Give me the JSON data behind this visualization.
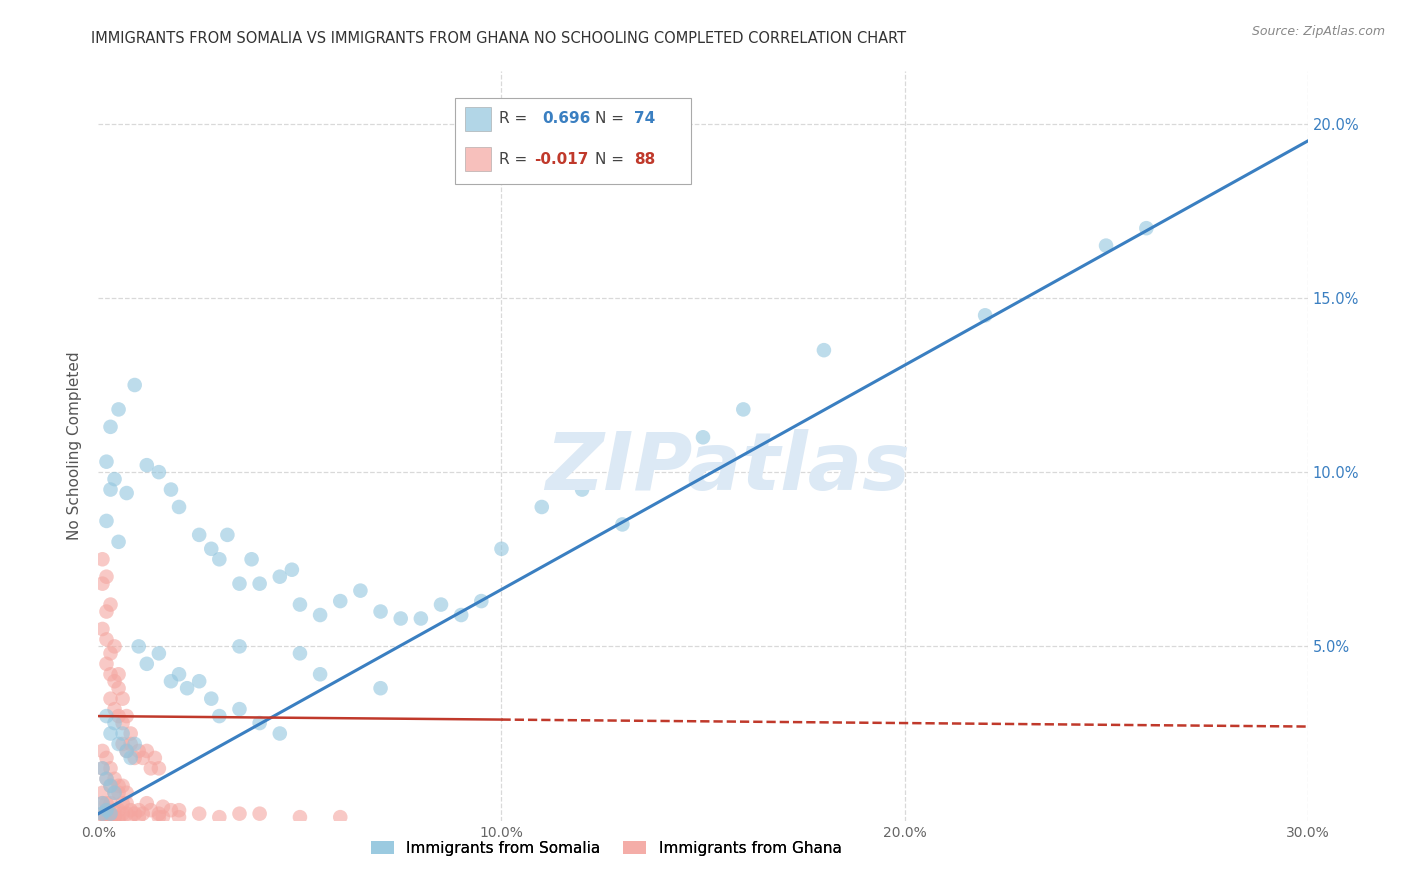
{
  "title": "IMMIGRANTS FROM SOMALIA VS IMMIGRANTS FROM GHANA NO SCHOOLING COMPLETED CORRELATION CHART",
  "source": "Source: ZipAtlas.com",
  "ylabel": "No Schooling Completed",
  "xlim": [
    0.0,
    0.3
  ],
  "ylim": [
    0.0,
    0.215
  ],
  "xtick_vals": [
    0.0,
    0.1,
    0.2,
    0.3
  ],
  "ytick_vals_right": [
    0.05,
    0.1,
    0.15,
    0.2
  ],
  "somalia_color": "#92c5de",
  "ghana_color": "#f4a6a0",
  "somalia_line_color": "#3a7fc1",
  "ghana_line_color": "#c0392b",
  "watermark": "ZIPatlas",
  "watermark_color": "#dce9f5",
  "background_color": "#ffffff",
  "grid_color": "#d9d9d9",
  "legend_R_color_somalia": "#3a7fc1",
  "legend_R_color_ghana": "#c0392b",
  "legend_somalia_label": "Immigrants from Somalia",
  "legend_ghana_label": "Immigrants from Ghana",
  "somalia_line": [
    [
      0.0,
      0.002
    ],
    [
      0.3,
      0.195
    ]
  ],
  "ghana_line_solid": [
    [
      0.0,
      0.03
    ],
    [
      0.1,
      0.029
    ]
  ],
  "ghana_line_dashed": [
    [
      0.1,
      0.029
    ],
    [
      0.3,
      0.027
    ]
  ],
  "somalia_pts": [
    [
      0.003,
      0.113
    ],
    [
      0.005,
      0.118
    ],
    [
      0.009,
      0.125
    ],
    [
      0.012,
      0.102
    ],
    [
      0.002,
      0.103
    ],
    [
      0.004,
      0.098
    ],
    [
      0.003,
      0.095
    ],
    [
      0.007,
      0.094
    ],
    [
      0.002,
      0.086
    ],
    [
      0.005,
      0.08
    ],
    [
      0.015,
      0.1
    ],
    [
      0.018,
      0.095
    ],
    [
      0.02,
      0.09
    ],
    [
      0.025,
      0.082
    ],
    [
      0.028,
      0.078
    ],
    [
      0.03,
      0.075
    ],
    [
      0.032,
      0.082
    ],
    [
      0.035,
      0.068
    ],
    [
      0.038,
      0.075
    ],
    [
      0.04,
      0.068
    ],
    [
      0.045,
      0.07
    ],
    [
      0.048,
      0.072
    ],
    [
      0.05,
      0.062
    ],
    [
      0.055,
      0.059
    ],
    [
      0.06,
      0.063
    ],
    [
      0.065,
      0.066
    ],
    [
      0.07,
      0.06
    ],
    [
      0.075,
      0.058
    ],
    [
      0.08,
      0.058
    ],
    [
      0.085,
      0.062
    ],
    [
      0.09,
      0.059
    ],
    [
      0.095,
      0.063
    ],
    [
      0.01,
      0.05
    ],
    [
      0.012,
      0.045
    ],
    [
      0.015,
      0.048
    ],
    [
      0.018,
      0.04
    ],
    [
      0.02,
      0.042
    ],
    [
      0.022,
      0.038
    ],
    [
      0.025,
      0.04
    ],
    [
      0.028,
      0.035
    ],
    [
      0.03,
      0.03
    ],
    [
      0.035,
      0.032
    ],
    [
      0.04,
      0.028
    ],
    [
      0.045,
      0.025
    ],
    [
      0.002,
      0.03
    ],
    [
      0.003,
      0.025
    ],
    [
      0.004,
      0.028
    ],
    [
      0.005,
      0.022
    ],
    [
      0.006,
      0.025
    ],
    [
      0.007,
      0.02
    ],
    [
      0.008,
      0.018
    ],
    [
      0.009,
      0.022
    ],
    [
      0.001,
      0.015
    ],
    [
      0.002,
      0.012
    ],
    [
      0.003,
      0.01
    ],
    [
      0.004,
      0.008
    ],
    [
      0.001,
      0.005
    ],
    [
      0.002,
      0.003
    ],
    [
      0.003,
      0.002
    ],
    [
      0.001,
      0.002
    ],
    [
      0.035,
      0.05
    ],
    [
      0.05,
      0.048
    ],
    [
      0.11,
      0.09
    ],
    [
      0.13,
      0.085
    ],
    [
      0.15,
      0.11
    ],
    [
      0.16,
      0.118
    ],
    [
      0.18,
      0.135
    ],
    [
      0.22,
      0.145
    ],
    [
      0.25,
      0.165
    ],
    [
      0.26,
      0.17
    ],
    [
      0.07,
      0.038
    ],
    [
      0.055,
      0.042
    ],
    [
      0.1,
      0.078
    ],
    [
      0.12,
      0.095
    ]
  ],
  "ghana_pts": [
    [
      0.001,
      0.075
    ],
    [
      0.002,
      0.07
    ],
    [
      0.001,
      0.068
    ],
    [
      0.002,
      0.06
    ],
    [
      0.003,
      0.062
    ],
    [
      0.001,
      0.055
    ],
    [
      0.002,
      0.052
    ],
    [
      0.003,
      0.048
    ],
    [
      0.004,
      0.05
    ],
    [
      0.002,
      0.045
    ],
    [
      0.003,
      0.042
    ],
    [
      0.004,
      0.04
    ],
    [
      0.005,
      0.038
    ],
    [
      0.005,
      0.042
    ],
    [
      0.006,
      0.035
    ],
    [
      0.003,
      0.035
    ],
    [
      0.004,
      0.032
    ],
    [
      0.005,
      0.03
    ],
    [
      0.006,
      0.028
    ],
    [
      0.007,
      0.03
    ],
    [
      0.008,
      0.025
    ],
    [
      0.006,
      0.022
    ],
    [
      0.007,
      0.02
    ],
    [
      0.008,
      0.022
    ],
    [
      0.009,
      0.018
    ],
    [
      0.01,
      0.02
    ],
    [
      0.011,
      0.018
    ],
    [
      0.012,
      0.02
    ],
    [
      0.013,
      0.015
    ],
    [
      0.014,
      0.018
    ],
    [
      0.015,
      0.015
    ],
    [
      0.001,
      0.02
    ],
    [
      0.001,
      0.015
    ],
    [
      0.002,
      0.018
    ],
    [
      0.002,
      0.012
    ],
    [
      0.003,
      0.015
    ],
    [
      0.003,
      0.01
    ],
    [
      0.004,
      0.012
    ],
    [
      0.004,
      0.008
    ],
    [
      0.005,
      0.01
    ],
    [
      0.005,
      0.008
    ],
    [
      0.006,
      0.01
    ],
    [
      0.006,
      0.005
    ],
    [
      0.007,
      0.008
    ],
    [
      0.007,
      0.005
    ],
    [
      0.001,
      0.008
    ],
    [
      0.001,
      0.005
    ],
    [
      0.002,
      0.005
    ],
    [
      0.002,
      0.003
    ],
    [
      0.003,
      0.005
    ],
    [
      0.003,
      0.002
    ],
    [
      0.004,
      0.003
    ],
    [
      0.004,
      0.001
    ],
    [
      0.005,
      0.003
    ],
    [
      0.005,
      0.001
    ],
    [
      0.001,
      0.002
    ],
    [
      0.001,
      0.001
    ],
    [
      0.002,
      0.001
    ],
    [
      0.003,
      0.001
    ],
    [
      0.006,
      0.002
    ],
    [
      0.007,
      0.002
    ],
    [
      0.008,
      0.003
    ],
    [
      0.009,
      0.002
    ],
    [
      0.01,
      0.003
    ],
    [
      0.011,
      0.002
    ],
    [
      0.012,
      0.005
    ],
    [
      0.013,
      0.003
    ],
    [
      0.015,
      0.002
    ],
    [
      0.016,
      0.001
    ],
    [
      0.018,
      0.003
    ],
    [
      0.02,
      0.001
    ],
    [
      0.025,
      0.002
    ],
    [
      0.03,
      0.001
    ],
    [
      0.04,
      0.002
    ],
    [
      0.05,
      0.001
    ],
    [
      0.06,
      0.001
    ],
    [
      0.035,
      0.002
    ],
    [
      0.002,
      0.0
    ],
    [
      0.003,
      0.0
    ],
    [
      0.004,
      0.0
    ],
    [
      0.005,
      0.0
    ],
    [
      0.01,
      0.001
    ],
    [
      0.015,
      0.001
    ],
    [
      0.016,
      0.004
    ],
    [
      0.02,
      0.003
    ],
    [
      0.008,
      0.001
    ]
  ]
}
